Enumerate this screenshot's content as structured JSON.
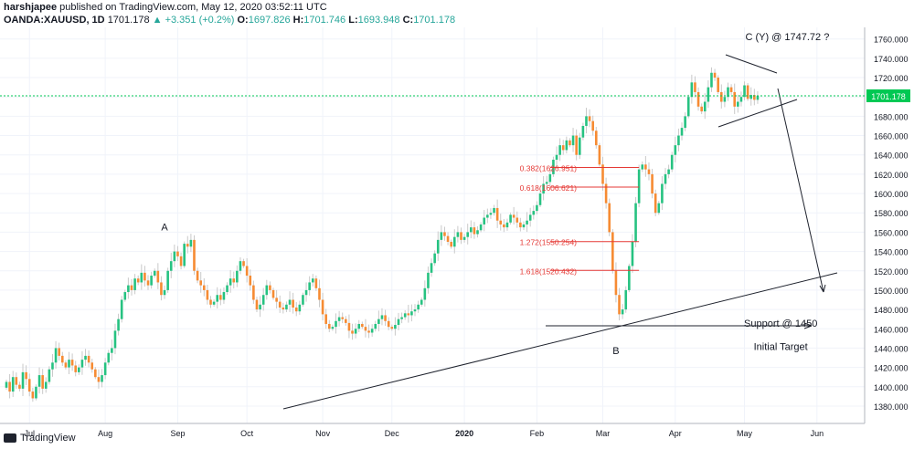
{
  "header": {
    "author": "harshjapee",
    "published": "published on TradingView.com, May 12, 2020 03:52:11 UTC",
    "symbol": "OANDA:XAUUSD, 1D",
    "last": "1701.178",
    "change": "▲ +3.351 (+0.2%)",
    "o_label": "O:",
    "o_value": "1697.826",
    "h_label": "H:",
    "h_value": "1701.746",
    "l_label": "L:",
    "l_value": "1693.948",
    "c_label": "C:",
    "c_value": "1701.178"
  },
  "brand": "TradingView",
  "colors": {
    "up": "#26c281",
    "down": "#f68b33",
    "fib": "#e53935",
    "price_tag": "#00c853"
  },
  "chart_data": {
    "type": "candlestick",
    "y_ticks": [
      1380,
      1400,
      1420,
      1440,
      1460,
      1480,
      1500,
      1520,
      1540,
      1560,
      1580,
      1600,
      1620,
      1640,
      1660,
      1680,
      1700,
      1720,
      1740,
      1760
    ],
    "y_tick_labels": [
      "1380.000",
      "1400.000",
      "1420.000",
      "1440.000",
      "1460.000",
      "1480.000",
      "1500.000",
      "1520.000",
      "1540.000",
      "1560.000",
      "1580.000",
      "1600.000",
      "1620.000",
      "1640.000",
      "1660.000",
      "1680.000",
      "1700.000",
      "1720.000",
      "1740.000",
      "1760.000"
    ],
    "ylim": [
      1362,
      1772
    ],
    "x_labels": [
      {
        "label": "Jul",
        "bar": 7
      },
      {
        "label": "Aug",
        "bar": 30
      },
      {
        "label": "Sep",
        "bar": 52
      },
      {
        "label": "Oct",
        "bar": 73
      },
      {
        "label": "Nov",
        "bar": 96
      },
      {
        "label": "Dec",
        "bar": 117
      },
      {
        "label": "2020",
        "bar": 139
      },
      {
        "label": "Feb",
        "bar": 161
      },
      {
        "label": "Mar",
        "bar": 181
      },
      {
        "label": "Apr",
        "bar": 203
      },
      {
        "label": "May",
        "bar": 224
      },
      {
        "label": "Jun",
        "bar": 246
      }
    ],
    "last_price": 1701.178,
    "last_price_label": "1701.178",
    "closes": [
      1405,
      1395,
      1410,
      1402,
      1398,
      1415,
      1408,
      1395,
      1388,
      1400,
      1412,
      1398,
      1405,
      1418,
      1425,
      1440,
      1432,
      1425,
      1420,
      1428,
      1422,
      1415,
      1420,
      1428,
      1432,
      1425,
      1418,
      1410,
      1405,
      1412,
      1425,
      1435,
      1440,
      1458,
      1470,
      1490,
      1498,
      1505,
      1500,
      1512,
      1508,
      1518,
      1510,
      1505,
      1515,
      1520,
      1508,
      1495,
      1500,
      1520,
      1530,
      1540,
      1535,
      1525,
      1548,
      1545,
      1552,
      1520,
      1510,
      1505,
      1500,
      1490,
      1485,
      1488,
      1495,
      1490,
      1498,
      1505,
      1512,
      1508,
      1520,
      1530,
      1525,
      1515,
      1505,
      1490,
      1480,
      1485,
      1495,
      1505,
      1500,
      1492,
      1488,
      1482,
      1480,
      1485,
      1490,
      1482,
      1478,
      1485,
      1495,
      1500,
      1508,
      1512,
      1502,
      1490,
      1475,
      1465,
      1460,
      1462,
      1468,
      1472,
      1470,
      1466,
      1458,
      1455,
      1460,
      1465,
      1462,
      1458,
      1456,
      1460,
      1465,
      1470,
      1474,
      1468,
      1462,
      1460,
      1464,
      1470,
      1472,
      1476,
      1474,
      1478,
      1480,
      1485,
      1490,
      1502,
      1518,
      1528,
      1538,
      1552,
      1560,
      1556,
      1550,
      1545,
      1555,
      1560,
      1552,
      1555,
      1560,
      1565,
      1558,
      1562,
      1568,
      1575,
      1578,
      1580,
      1585,
      1572,
      1568,
      1565,
      1570,
      1578,
      1575,
      1570,
      1565,
      1568,
      1572,
      1578,
      1582,
      1588,
      1600,
      1610,
      1612,
      1620,
      1635,
      1640,
      1650,
      1645,
      1655,
      1650,
      1660,
      1640,
      1658,
      1670,
      1680,
      1675,
      1665,
      1650,
      1630,
      1610,
      1590,
      1560,
      1520,
      1495,
      1475,
      1480,
      1500,
      1525,
      1550,
      1590,
      1625,
      1630,
      1625,
      1620,
      1600,
      1580,
      1590,
      1610,
      1620,
      1625,
      1640,
      1650,
      1660,
      1668,
      1680,
      1700,
      1715,
      1705,
      1690,
      1685,
      1695,
      1710,
      1725,
      1720,
      1705,
      1695,
      1700,
      1710,
      1705,
      1690,
      1695,
      1700,
      1712,
      1698,
      1702,
      1697,
      1701
    ],
    "wave_labels": [
      {
        "text": "A",
        "bar": 48,
        "price": 1562
      },
      {
        "text": "B",
        "bar": 185,
        "price": 1434
      },
      {
        "text": "C (Y) @ 1747.72 ?",
        "bar": 237,
        "price": 1759
      }
    ],
    "fib_levels": [
      {
        "label": "0.382(1626.951)",
        "price": 1626.951,
        "from_bar": 165,
        "to_bar": 192
      },
      {
        "label": "0.618(1606.621)",
        "price": 1606.621,
        "from_bar": 165,
        "to_bar": 192
      },
      {
        "label": "1.272(1550.254)",
        "price": 1550.254,
        "from_bar": 165,
        "to_bar": 192
      },
      {
        "label": "1.618(1520.432)",
        "price": 1520.432,
        "from_bar": 165,
        "to_bar": 192
      }
    ],
    "annotations": [
      {
        "text": "Support @ 1450",
        "bar": 235,
        "price": 1462
      },
      {
        "text": "Initial Target",
        "bar": 235,
        "price": 1438
      }
    ]
  }
}
